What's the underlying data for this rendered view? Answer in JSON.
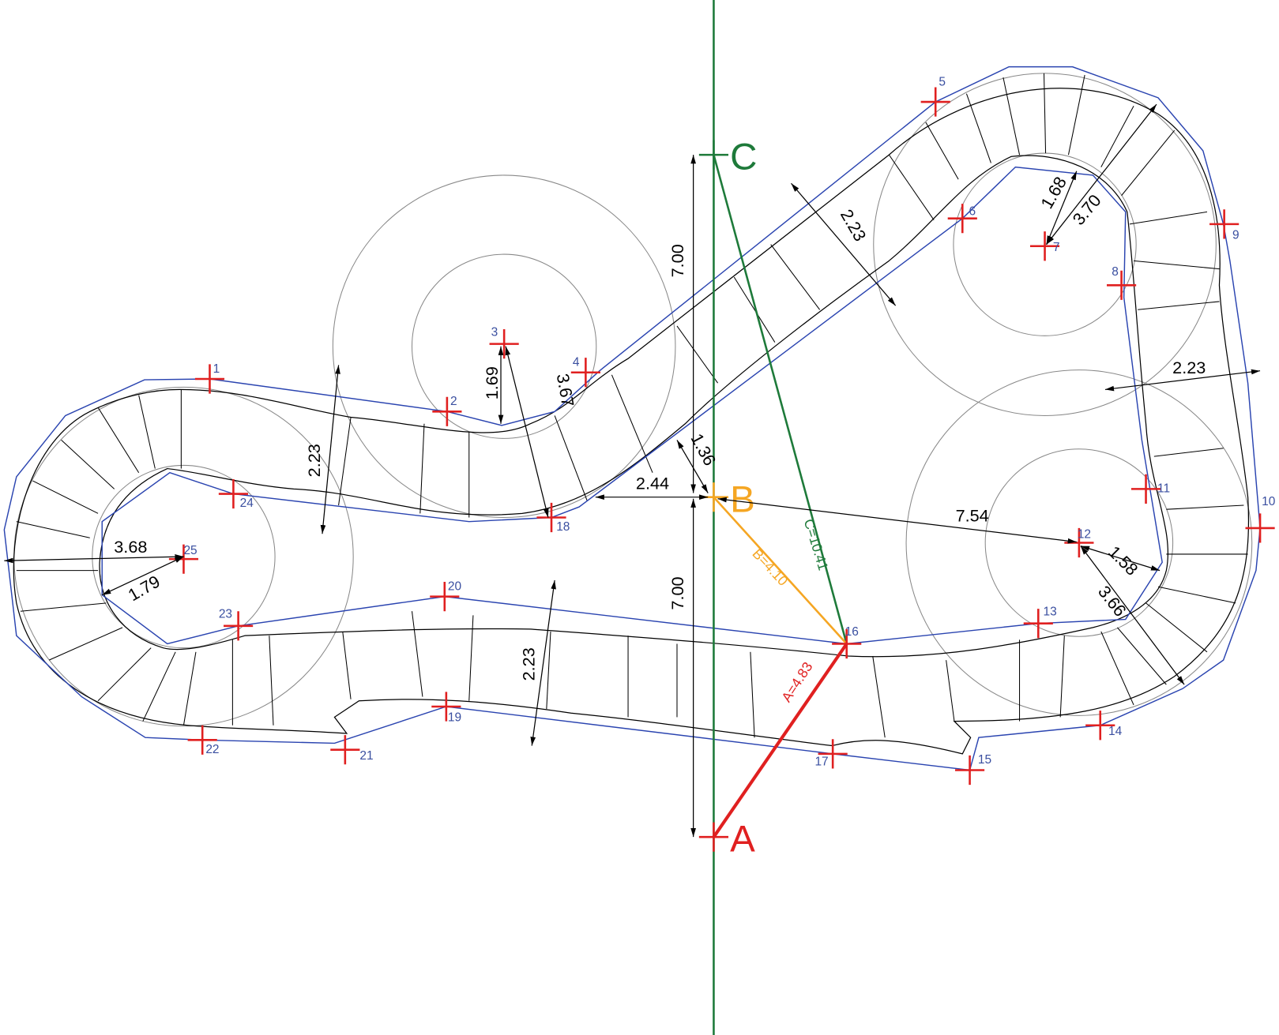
{
  "points": [
    {
      "label": "1"
    },
    {
      "label": "2"
    },
    {
      "label": "3"
    },
    {
      "label": "4"
    },
    {
      "label": "5"
    },
    {
      "label": "6"
    },
    {
      "label": "7"
    },
    {
      "label": "8"
    },
    {
      "label": "9"
    },
    {
      "label": "10"
    },
    {
      "label": "11"
    },
    {
      "label": "12"
    },
    {
      "label": "13"
    },
    {
      "label": "14"
    },
    {
      "label": "15"
    },
    {
      "label": "16"
    },
    {
      "label": "17"
    },
    {
      "label": "18"
    },
    {
      "label": "19"
    },
    {
      "label": "20"
    },
    {
      "label": "21"
    },
    {
      "label": "22"
    },
    {
      "label": "23"
    },
    {
      "label": "24"
    },
    {
      "label": "25"
    }
  ],
  "anchors": [
    {
      "label": "A"
    },
    {
      "label": "B"
    },
    {
      "label": "C"
    }
  ],
  "segments": [
    {
      "label": "A=4.83"
    },
    {
      "label": "B=4.10"
    },
    {
      "label": "C=10.41"
    }
  ],
  "dimensions": [
    {
      "label": "7.00"
    },
    {
      "label": "7.00"
    },
    {
      "label": "2.44"
    },
    {
      "label": "1.36"
    },
    {
      "label": "7.54"
    },
    {
      "label": "1.69"
    },
    {
      "label": "3.67"
    },
    {
      "label": "2.23"
    },
    {
      "label": "1.68"
    },
    {
      "label": "3.70"
    },
    {
      "label": "2.23"
    },
    {
      "label": "1.58"
    },
    {
      "label": "3.66"
    },
    {
      "label": "2.23"
    },
    {
      "label": "2.23"
    },
    {
      "label": "3.68"
    },
    {
      "label": "1.79"
    }
  ]
}
